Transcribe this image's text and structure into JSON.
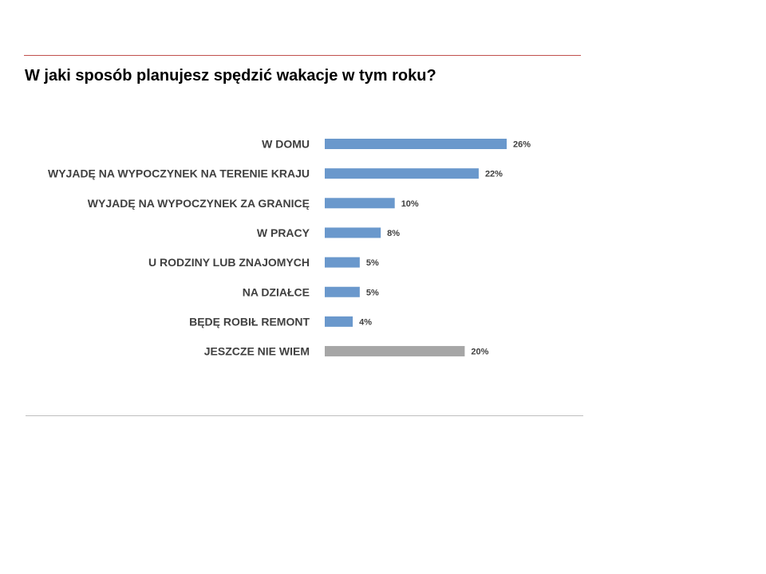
{
  "title": "W jaki sposób planujesz spędzić wakacje w tym roku?",
  "colors": {
    "accent_rule": "#c0504d",
    "bar_primary": "#6a98cc",
    "bar_other": "#a6a6a6",
    "bottom_rule": "#bfbfbf",
    "label_text": "#404040"
  },
  "chart_data": {
    "type": "bar",
    "orientation": "horizontal",
    "title": "W jaki sposób planujesz spędzić wakacje w tym roku?",
    "xlabel": "",
    "ylabel": "",
    "grid": false,
    "legend": "none",
    "unit": "%",
    "categories": [
      "W DOMU",
      "WYJADĘ NA WYPOCZYNEK NA TERENIE KRAJU",
      "WYJADĘ NA WYPOCZYNEK ZA GRANICĘ",
      "W PRACY",
      "U RODZINY LUB ZNAJOMYCH",
      "NA DZIAŁCE",
      "BĘDĘ ROBIŁ REMONT",
      "JESZCZE NIE WIEM"
    ],
    "values": [
      26,
      22,
      10,
      8,
      5,
      5,
      4,
      20
    ],
    "value_labels": [
      "26%",
      "22%",
      "10%",
      "8%",
      "5%",
      "5%",
      "4%",
      "20%"
    ],
    "bar_colors": [
      "#6a98cc",
      "#6a98cc",
      "#6a98cc",
      "#6a98cc",
      "#6a98cc",
      "#6a98cc",
      "#6a98cc",
      "#a6a6a6"
    ]
  }
}
